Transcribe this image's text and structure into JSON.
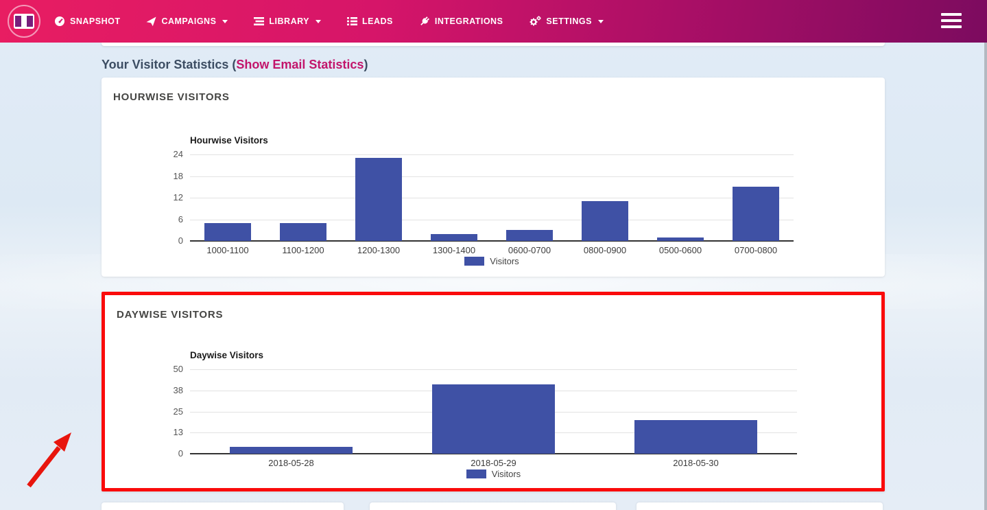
{
  "navbar": {
    "items": [
      {
        "label": "SNAPSHOT",
        "icon": "dashboard-icon",
        "has_dropdown": false
      },
      {
        "label": "CAMPAIGNS",
        "icon": "paper-plane-icon",
        "has_dropdown": true
      },
      {
        "label": "LIBRARY",
        "icon": "library-icon",
        "has_dropdown": true
      },
      {
        "label": "LEADS",
        "icon": "list-icon",
        "has_dropdown": false
      },
      {
        "label": "INTEGRATIONS",
        "icon": "plug-icon",
        "has_dropdown": false
      },
      {
        "label": "SETTINGS",
        "icon": "gears-icon",
        "has_dropdown": true
      }
    ]
  },
  "heading": {
    "text": "Your Visitor Statistics ",
    "paren_open": "(",
    "link": "Show Email Statistics",
    "paren_close": ")"
  },
  "cards": {
    "hourwise_title": "HOURWISE VISITORS",
    "daywise_title": "DAYWISE VISITORS"
  },
  "chart_data": [
    {
      "type": "bar",
      "title": "Hourwise Visitors",
      "categories": [
        "1000-1100",
        "1100-1200",
        "1200-1300",
        "1300-1400",
        "0600-0700",
        "0800-0900",
        "0500-0600",
        "0700-0800"
      ],
      "values": [
        5,
        5,
        23,
        2,
        3,
        11,
        1,
        15
      ],
      "series_name": "Visitors",
      "xlabel": "",
      "ylabel": "",
      "ylim": [
        0,
        24
      ],
      "ytick_labels": [
        "0",
        "6",
        "12",
        "18",
        "24"
      ],
      "grid": true,
      "legend_position": "bottom",
      "bar_color": "#3F51A5"
    },
    {
      "type": "bar",
      "title": "Daywise Visitors",
      "categories": [
        "2018-05-28",
        "2018-05-29",
        "2018-05-30"
      ],
      "values": [
        4,
        41,
        20
      ],
      "series_name": "Visitors",
      "xlabel": "",
      "ylabel": "",
      "ylim": [
        0,
        50
      ],
      "ytick_labels": [
        "0",
        "13",
        "25",
        "38",
        "50"
      ],
      "grid": true,
      "legend_position": "bottom",
      "bar_color": "#3F51A5"
    }
  ],
  "annotations": {
    "highlight_border_color": "#fa0b0b",
    "arrow_color": "#e8150d",
    "highlighted_card": "DAYWISE VISITORS"
  },
  "colors": {
    "nav_gradient_start": "#e81d62",
    "nav_gradient_end": "#7c0b5f",
    "page_background": "#dfe9f4",
    "heading_text": "#3c4d63",
    "heading_link": "#c2156b",
    "bar_blue": "#3F51A5"
  }
}
